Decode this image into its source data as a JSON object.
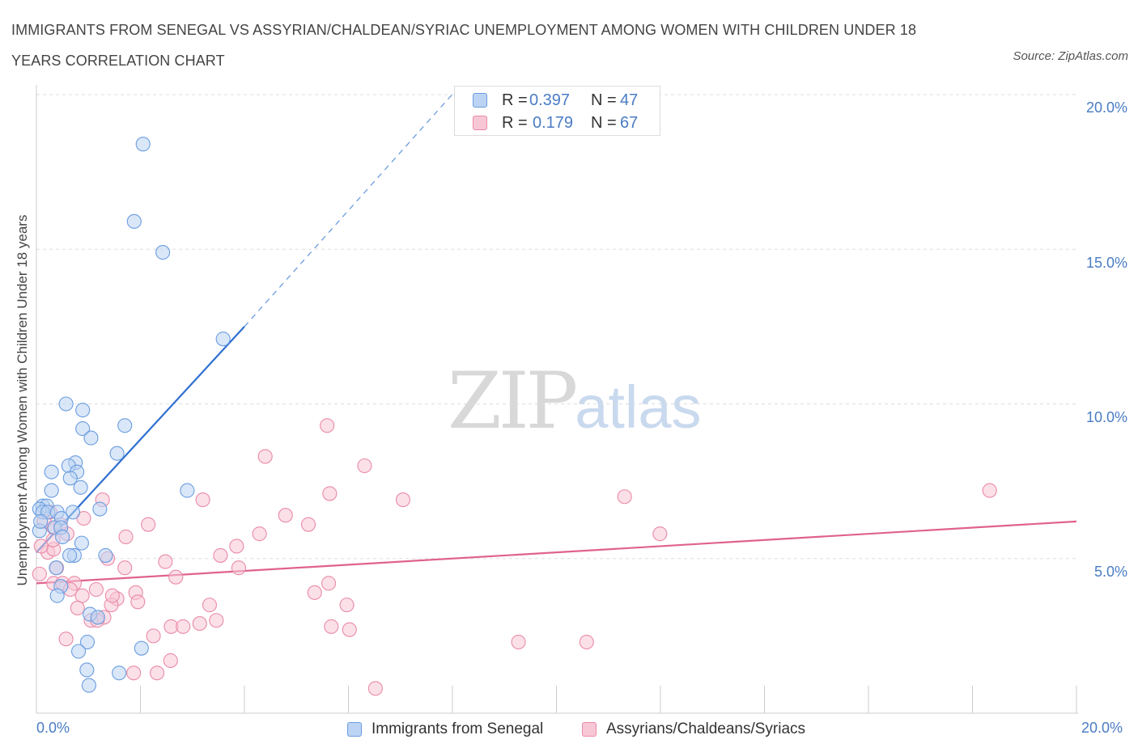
{
  "title": "IMMIGRANTS FROM SENEGAL VS ASSYRIAN/CHALDEAN/SYRIAC UNEMPLOYMENT AMONG WOMEN WITH CHILDREN UNDER 18 YEARS CORRELATION CHART",
  "source": "Source: ZipAtlas.com",
  "watermark": {
    "zip": "ZIP",
    "atlas": "atlas"
  },
  "stats": [
    {
      "r_label": "R =",
      "r_value": "0.397",
      "n_label": "N =",
      "n_value": "47"
    },
    {
      "r_label": "R =",
      "r_value": "0.179",
      "n_label": "N =",
      "n_value": "67"
    }
  ],
  "legend": [
    "Immigrants from Senegal",
    "Assyrians/Chaldeans/Syriacs"
  ],
  "colors": {
    "senegal_fill": "#bcd3f3",
    "senegal_stroke": "#6a9de0",
    "senegal_line": "#2f6fd0",
    "assyrian_fill": "#f8c7d6",
    "assyrian_stroke": "#ea8aa8",
    "assyrian_line": "#e0628e",
    "axis_text": "#4a7cc4",
    "grid": "#dddddd"
  },
  "chart_data": {
    "type": "scatter",
    "title": "IMMIGRANTS FROM SENEGAL VS ASSYRIAN/CHALDEAN/SYRIAC UNEMPLOYMENT AMONG WOMEN WITH CHILDREN UNDER 18 YEARS CORRELATION CHART",
    "xlabel": "",
    "ylabel": "Unemployment Among Women with Children Under 18 years",
    "xlim": [
      0,
      20
    ],
    "ylim": [
      0,
      20
    ],
    "x_tick_labels": [
      "0.0%",
      "20.0%"
    ],
    "y_tick_labels": [
      "5.0%",
      "10.0%",
      "15.0%",
      "20.0%"
    ],
    "y_ticks": [
      5,
      10,
      15,
      20
    ],
    "grid": true,
    "legend_position": "bottom",
    "series": [
      {
        "name": "Immigrants from Senegal",
        "R": 0.397,
        "N": 47,
        "trend": {
          "x": [
            0.0,
            4.0
          ],
          "y": [
            5.2,
            12.5
          ],
          "dashed_to": [
            8.1,
            20.2
          ]
        },
        "points": [
          [
            2.05,
            18.4
          ],
          [
            1.88,
            15.9
          ],
          [
            2.43,
            14.9
          ],
          [
            3.59,
            12.1
          ],
          [
            0.57,
            10.0
          ],
          [
            0.89,
            9.8
          ],
          [
            0.89,
            9.2
          ],
          [
            1.7,
            9.3
          ],
          [
            1.05,
            8.9
          ],
          [
            1.55,
            8.4
          ],
          [
            0.75,
            8.1
          ],
          [
            0.62,
            8.0
          ],
          [
            0.29,
            7.8
          ],
          [
            0.78,
            7.8
          ],
          [
            0.65,
            7.6
          ],
          [
            0.85,
            7.3
          ],
          [
            0.29,
            7.2
          ],
          [
            2.9,
            7.2
          ],
          [
            0.12,
            6.7
          ],
          [
            0.2,
            6.7
          ],
          [
            0.06,
            6.6
          ],
          [
            0.12,
            6.5
          ],
          [
            0.22,
            6.5
          ],
          [
            0.4,
            6.5
          ],
          [
            0.7,
            6.5
          ],
          [
            0.48,
            6.3
          ],
          [
            1.22,
            6.6
          ],
          [
            0.35,
            6.0
          ],
          [
            0.47,
            6.0
          ],
          [
            0.06,
            5.9
          ],
          [
            0.5,
            5.7
          ],
          [
            0.87,
            5.5
          ],
          [
            0.73,
            5.1
          ],
          [
            0.64,
            5.1
          ],
          [
            1.33,
            5.1
          ],
          [
            0.38,
            4.7
          ],
          [
            0.47,
            4.1
          ],
          [
            0.4,
            3.8
          ],
          [
            1.03,
            3.2
          ],
          [
            1.18,
            3.1
          ],
          [
            0.98,
            2.3
          ],
          [
            0.81,
            2.0
          ],
          [
            2.02,
            2.1
          ],
          [
            0.97,
            1.4
          ],
          [
            1.59,
            1.3
          ],
          [
            1.01,
            0.9
          ],
          [
            0.08,
            6.2
          ]
        ]
      },
      {
        "name": "Assyrians/Chaldeans/Syriacs",
        "R": 0.179,
        "N": 67,
        "trend": {
          "x": [
            0.0,
            20.0
          ],
          "y": [
            4.2,
            6.2
          ]
        },
        "points": [
          [
            5.59,
            9.3
          ],
          [
            4.4,
            8.3
          ],
          [
            6.31,
            8.0
          ],
          [
            18.33,
            7.2
          ],
          [
            5.64,
            7.1
          ],
          [
            11.31,
            7.0
          ],
          [
            7.05,
            6.9
          ],
          [
            3.2,
            6.9
          ],
          [
            1.27,
            6.9
          ],
          [
            4.79,
            6.4
          ],
          [
            2.15,
            6.1
          ],
          [
            5.23,
            6.1
          ],
          [
            0.91,
            6.3
          ],
          [
            0.33,
            6.0
          ],
          [
            0.59,
            5.8
          ],
          [
            1.72,
            5.7
          ],
          [
            4.29,
            5.8
          ],
          [
            11.99,
            5.8
          ],
          [
            3.85,
            5.4
          ],
          [
            3.54,
            5.1
          ],
          [
            0.22,
            5.2
          ],
          [
            0.33,
            5.3
          ],
          [
            1.37,
            5.0
          ],
          [
            2.48,
            4.9
          ],
          [
            0.39,
            4.7
          ],
          [
            1.7,
            4.7
          ],
          [
            3.89,
            4.7
          ],
          [
            2.68,
            4.4
          ],
          [
            0.06,
            4.5
          ],
          [
            0.33,
            4.2
          ],
          [
            0.5,
            4.2
          ],
          [
            0.73,
            4.2
          ],
          [
            1.15,
            4.0
          ],
          [
            1.91,
            3.9
          ],
          [
            5.62,
            4.2
          ],
          [
            0.88,
            3.8
          ],
          [
            1.55,
            3.7
          ],
          [
            5.35,
            3.9
          ],
          [
            1.95,
            3.6
          ],
          [
            1.44,
            3.5
          ],
          [
            3.33,
            3.5
          ],
          [
            5.97,
            3.5
          ],
          [
            0.79,
            3.4
          ],
          [
            1.05,
            3.0
          ],
          [
            1.3,
            3.1
          ],
          [
            1.17,
            3.0
          ],
          [
            3.46,
            3.0
          ],
          [
            3.14,
            2.9
          ],
          [
            5.67,
            2.8
          ],
          [
            2.59,
            2.8
          ],
          [
            2.82,
            2.8
          ],
          [
            6.02,
            2.7
          ],
          [
            2.25,
            2.5
          ],
          [
            0.57,
            2.4
          ],
          [
            9.27,
            2.3
          ],
          [
            10.58,
            2.3
          ],
          [
            2.58,
            1.7
          ],
          [
            1.87,
            1.3
          ],
          [
            2.32,
            1.3
          ],
          [
            6.52,
            0.8
          ],
          [
            0.09,
            5.4
          ],
          [
            0.32,
            5.6
          ],
          [
            0.26,
            6.5
          ],
          [
            0.46,
            6.1
          ],
          [
            0.15,
            6.2
          ],
          [
            0.65,
            4.0
          ],
          [
            1.46,
            3.8
          ]
        ]
      }
    ]
  }
}
